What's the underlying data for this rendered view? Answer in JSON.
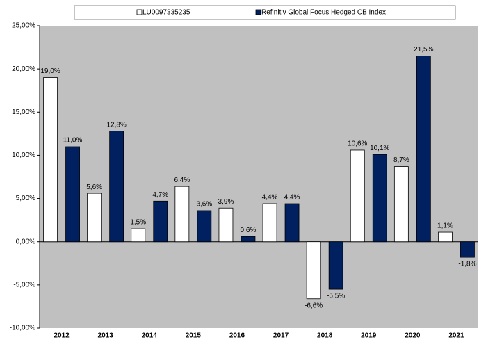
{
  "chart_data": {
    "type": "bar",
    "categories": [
      "2012",
      "2013",
      "2014",
      "2015",
      "2016",
      "2017",
      "2018",
      "2019",
      "2020",
      "2021"
    ],
    "series": [
      {
        "name": "LU0097335235",
        "color": "#ffffff",
        "values": [
          19.0,
          5.6,
          1.5,
          6.4,
          3.9,
          4.4,
          -6.6,
          10.6,
          8.7,
          1.1
        ],
        "value_labels": [
          "19,0%",
          "5,6%",
          "1,5%",
          "6,4%",
          "3,9%",
          "4,4%",
          "-6,6%",
          "10,6%",
          "8,7%",
          "1,1%"
        ]
      },
      {
        "name": "Refinitiv Global Focus Hedged CB Index",
        "color": "#002060",
        "values": [
          11.0,
          12.8,
          4.7,
          3.6,
          0.6,
          4.4,
          -5.5,
          10.1,
          21.5,
          -1.8
        ],
        "value_labels": [
          "11,0%",
          "12,8%",
          "4,7%",
          "3,6%",
          "0,6%",
          "4,4%",
          "-5,5%",
          "10,1%",
          "21,5%",
          "-1,8%"
        ]
      }
    ],
    "ylim": [
      -10,
      25
    ],
    "yticks": [
      {
        "value": -10,
        "label": "-10,00%"
      },
      {
        "value": -5,
        "label": "-5,00%"
      },
      {
        "value": 0,
        "label": "0,00%"
      },
      {
        "value": 5,
        "label": "5,00%"
      },
      {
        "value": 10,
        "label": "10,00%"
      },
      {
        "value": 15,
        "label": "15,00%"
      },
      {
        "value": 20,
        "label": "20,00%"
      },
      {
        "value": 25,
        "label": "25,00%"
      }
    ],
    "grid": false,
    "legend": "top",
    "plot_background": "#c0c0c0",
    "negative_label_color": "#e02020"
  }
}
